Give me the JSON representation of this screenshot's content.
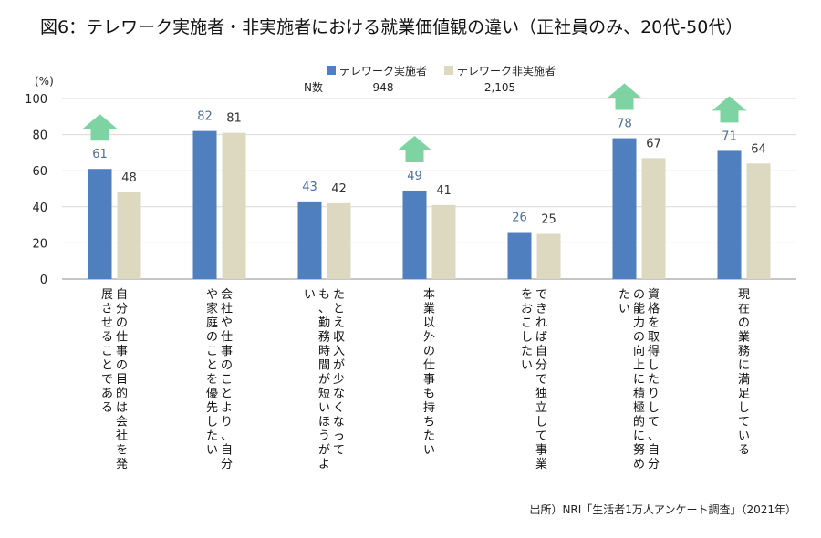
{
  "title": "図6：テレワーク実施者・非実施者における就業価値観の違い（正社員のみ、20代-50代）",
  "source": "出所）NRI「生活者1万人アンケート調査」（2021年）",
  "colors": {
    "telework": "#4f7fbf",
    "non_telework": "#ddd8c0",
    "arrow": "#7dd3a2",
    "grid": "#d9d9d9"
  },
  "chart_data": {
    "type": "bar",
    "y_unit_label": "(%)",
    "ylim": [
      0,
      100
    ],
    "yticks": [
      0,
      20,
      40,
      60,
      80,
      100
    ],
    "legend": [
      {
        "name": "テレワーク実施者",
        "color": "#4f7fbf"
      },
      {
        "name": "テレワーク非実施者",
        "color": "#ddd8c0"
      }
    ],
    "n_label": "N数",
    "n_values": [
      "948",
      "2,105"
    ],
    "categories": [
      [
        "自分の仕事の目的は会社を発",
        "展させることである"
      ],
      [
        "会社や仕事のことより、自分",
        "や家庭のことを優先したい"
      ],
      [
        "たとえ収入が少なくなって",
        "も、勤務時間が短いほうがよ",
        "い"
      ],
      [
        "本業以外の仕事も持ちたい"
      ],
      [
        "できれば自分で独立して事業",
        "をおこしたい"
      ],
      [
        "資格を取得したりして、自分",
        "の能力の向上に積極的に努め",
        "たい"
      ],
      [
        "現在の業務に満足している"
      ]
    ],
    "series": [
      {
        "name": "テレワーク実施者",
        "values": [
          61,
          82,
          43,
          49,
          26,
          78,
          71
        ]
      },
      {
        "name": "テレワーク非実施者",
        "values": [
          48,
          81,
          42,
          41,
          25,
          67,
          64
        ]
      }
    ],
    "up_arrows": [
      true,
      false,
      false,
      true,
      false,
      true,
      true
    ]
  }
}
